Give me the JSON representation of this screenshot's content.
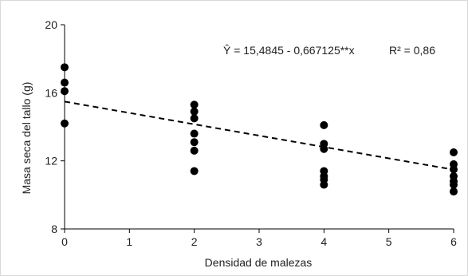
{
  "chart_data": {
    "type": "scatter",
    "xlabel": "Densidad de malezas",
    "ylabel": "Masa seca del tallo (g)",
    "xlim": [
      0,
      6
    ],
    "ylim": [
      8,
      20
    ],
    "x_ticks": [
      "0",
      "1",
      "2",
      "3",
      "4",
      "5",
      "6"
    ],
    "y_ticks": [
      "8",
      "12",
      "16",
      "20"
    ],
    "x_tick_values": [
      0,
      1,
      2,
      3,
      4,
      5,
      6
    ],
    "y_tick_values": [
      8,
      12,
      16,
      20
    ],
    "grid": false,
    "points": [
      {
        "x": 0,
        "y": 17.5
      },
      {
        "x": 0,
        "y": 16.6
      },
      {
        "x": 0,
        "y": 16.1
      },
      {
        "x": 0,
        "y": 14.2
      },
      {
        "x": 2,
        "y": 15.3
      },
      {
        "x": 2,
        "y": 14.9
      },
      {
        "x": 2,
        "y": 14.5
      },
      {
        "x": 2,
        "y": 13.6
      },
      {
        "x": 2,
        "y": 13.1
      },
      {
        "x": 2,
        "y": 12.6
      },
      {
        "x": 2,
        "y": 11.4
      },
      {
        "x": 4,
        "y": 14.1
      },
      {
        "x": 4,
        "y": 13.0
      },
      {
        "x": 4,
        "y": 12.7
      },
      {
        "x": 4,
        "y": 11.4
      },
      {
        "x": 4,
        "y": 11.1
      },
      {
        "x": 4,
        "y": 10.9
      },
      {
        "x": 4,
        "y": 10.6
      },
      {
        "x": 6,
        "y": 12.5
      },
      {
        "x": 6,
        "y": 11.8
      },
      {
        "x": 6,
        "y": 11.5
      },
      {
        "x": 6,
        "y": 11.1
      },
      {
        "x": 6,
        "y": 10.8
      },
      {
        "x": 6,
        "y": 10.6
      },
      {
        "x": 6,
        "y": 10.2
      }
    ],
    "trendline": {
      "intercept": 15.4845,
      "slope": -0.667125,
      "style": "dashed"
    },
    "equation_text": "Ŷ = 15,4845  - 0,667125**x",
    "r2_text": "R² = 0,86",
    "marker_color": "#000000",
    "line_color": "#000000"
  }
}
